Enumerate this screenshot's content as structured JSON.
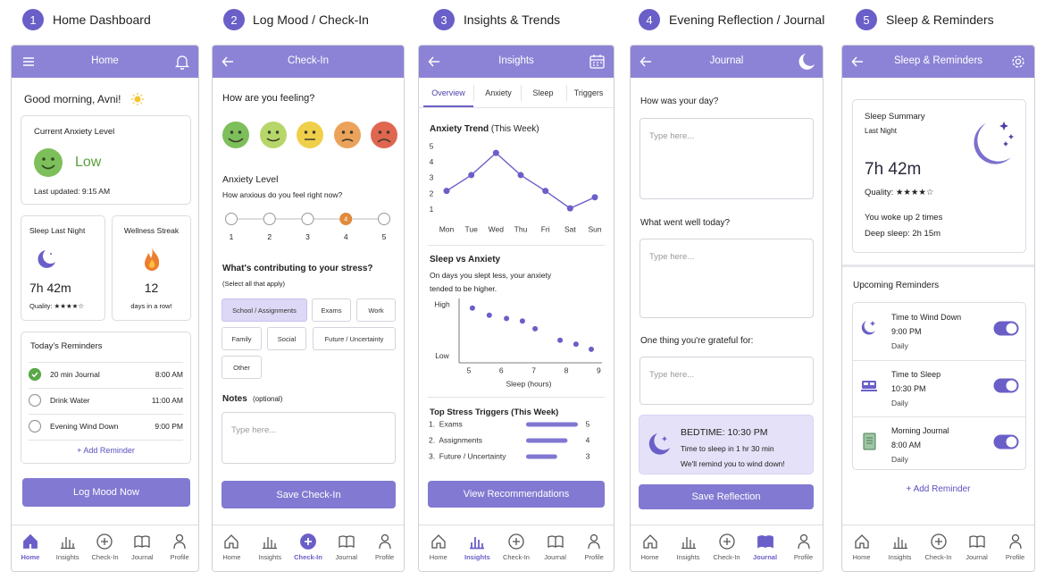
{
  "steps": [
    {
      "number": "1",
      "title": "Home Dashboard"
    },
    {
      "number": "2",
      "title": "Log Mood / Check-In"
    },
    {
      "number": "3",
      "title": "Insights & Trends"
    },
    {
      "number": "4",
      "title": "Evening Reflection / Journal"
    },
    {
      "number": "5",
      "title": "Sleep & Reminders"
    }
  ],
  "nav": [
    "Home",
    "Insights",
    "Check-In",
    "Journal",
    "Profile"
  ],
  "home": {
    "header": "Home",
    "greeting": "Good morning, Avni!",
    "anxiety_title": "Current Anxiety Level",
    "anxiety_level": "Low",
    "last_updated": "Last updated: 9:15 AM",
    "sleep_title": "Sleep Last Night",
    "sleep_duration": "7h 42m",
    "sleep_quality": "Quality: ★★★★☆",
    "streak_title": "Wellness Streak",
    "streak_days": "12",
    "streak_caption": "days in a row!",
    "reminders_title": "Today's Reminders",
    "reminders": [
      {
        "label": "20 min Journal",
        "time": "8:00 AM",
        "done": true
      },
      {
        "label": "Drink Water",
        "time": "11:00 AM",
        "done": false
      },
      {
        "label": "Evening Wind Down",
        "time": "9:00 PM",
        "done": false
      }
    ],
    "add_reminder": "+ Add Reminder",
    "button": "Log Mood Now"
  },
  "checkin": {
    "header": "Check-In",
    "feeling_question": "How are you feeling?",
    "level_title": "Anxiety Level",
    "level_question": "How anxious do you feel right now?",
    "scale": [
      "1",
      "2",
      "3",
      "4",
      "5"
    ],
    "selected_level": "4",
    "stress_question": "What's contributing to your stress?",
    "stress_hint": "(Select all that apply)",
    "stress_options": [
      {
        "label": "School / Assignments",
        "selected": true
      },
      {
        "label": "Exams",
        "selected": false
      },
      {
        "label": "Work",
        "selected": false
      },
      {
        "label": "Family",
        "selected": false
      },
      {
        "label": "Social",
        "selected": false
      },
      {
        "label": "Future / Uncertainty",
        "selected": false
      },
      {
        "label": "Other",
        "selected": false
      }
    ],
    "notes_label": "Notes",
    "notes_hint": "(optional)",
    "notes_placeholder": "Type here...",
    "button": "Save Check-In"
  },
  "insights": {
    "header": "Insights",
    "tabs": [
      "Overview",
      "Anxiety",
      "Sleep",
      "Triggers"
    ],
    "active_tab": "Overview",
    "button": "View Recommendations"
  },
  "journal": {
    "header": "Journal",
    "prompts": [
      {
        "question": "How was your day?",
        "placeholder": "Type here..."
      },
      {
        "question": "What went well today?",
        "placeholder": "Type here..."
      },
      {
        "question": "One thing you're grateful for:",
        "placeholder": "Type here..."
      }
    ],
    "bedtime_title": "BEDTIME: 10:30 PM",
    "bedtime_countdown": "Time to sleep in 1 hr 30 min",
    "bedtime_note": "We'll remind you to wind down!",
    "button": "Save Reflection"
  },
  "sleep": {
    "header": "Sleep & Reminders",
    "summary_title": "Sleep Summary",
    "summary_period": "Last Night",
    "duration": "7h 42m",
    "quality": "Quality: ★★★★☆",
    "wake_ups": "You woke up 2 times",
    "deep_sleep": "Deep sleep: 2h 15m",
    "reminders_title": "Upcoming Reminders",
    "reminders": [
      {
        "title": "Time to Wind Down",
        "time": "9:00 PM",
        "frequency": "Daily",
        "on": true
      },
      {
        "title": "Time to Sleep",
        "time": "10:30 PM",
        "frequency": "Daily",
        "on": true
      },
      {
        "title": "Morning Journal",
        "time": "8:00 AM",
        "frequency": "Daily",
        "on": true
      }
    ],
    "add_reminder": "+ Add Reminder"
  },
  "chart_data": [
    {
      "type": "line",
      "title": "Anxiety Trend",
      "subtitle": "(This Week)",
      "categories": [
        "Mon",
        "Tue",
        "Wed",
        "Thu",
        "Fri",
        "Sat",
        "Sun"
      ],
      "values": [
        2.2,
        3.2,
        4.6,
        3.2,
        2.2,
        1.1,
        1.8
      ],
      "color": "#6a5fc8",
      "ylim": [
        0.6,
        5.2
      ],
      "yticks": [
        1,
        2,
        3,
        4,
        5
      ]
    },
    {
      "type": "scatter",
      "title": "Sleep vs Anxiety",
      "subtitle": "On days you slept less, your anxiety tended to be higher.",
      "x_label": "Sleep (hours)",
      "x": [
        5.11,
        5.63,
        6.16,
        6.65,
        7.04,
        7.81,
        8.3,
        8.77
      ],
      "values": [
        8.5,
        7.4,
        6.9,
        6.5,
        5.3,
        3.5,
        2.9,
        2.1
      ],
      "color": "#6a5fc8",
      "xlim": [
        4.7,
        9.1
      ],
      "xticks": [
        5,
        6,
        7,
        8,
        9
      ],
      "ylim": [
        0,
        10
      ],
      "yticks": [
        {
          "value": 1,
          "label": "Low"
        },
        {
          "value": 9,
          "label": "High"
        }
      ]
    },
    {
      "type": "bar",
      "title": "Top Stress Triggers",
      "subtitle": "(This Week)",
      "categories": [
        "1.  Exams",
        "2.  Assignments",
        "3.  Future / Uncertainty"
      ],
      "values": [
        5,
        4,
        3
      ],
      "color": "#8077d1"
    }
  ]
}
